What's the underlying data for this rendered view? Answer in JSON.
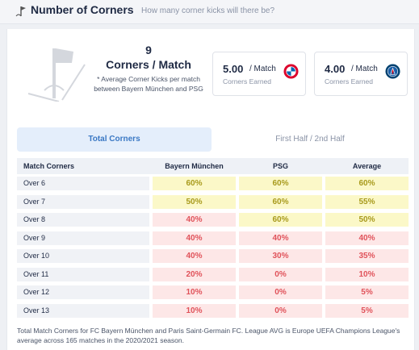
{
  "header": {
    "title": "Number of Corners",
    "subtitle": "How many corner kicks will there be?"
  },
  "summary": {
    "corners_value": "9",
    "corners_label": "Corners / Match",
    "note": "* Average Corner Kicks per match between Bayern München and PSG"
  },
  "teams": [
    {
      "value": "5.00",
      "per": "/ Match",
      "sub": "Corners Earned",
      "logo": "bayern-logo-icon",
      "color": "#dc052d"
    },
    {
      "value": "4.00",
      "per": "/ Match",
      "sub": "Corners Earned",
      "logo": "psg-logo-icon",
      "color": "#004170"
    }
  ],
  "tabs": [
    {
      "label": "Total Corners",
      "active": true
    },
    {
      "label": "First Half / 2nd Half",
      "active": false
    }
  ],
  "table": {
    "headers": [
      "Match Corners",
      "Bayern München",
      "PSG",
      "Average"
    ],
    "rows": [
      {
        "label": "Over 6",
        "values": [
          "60%",
          "60%",
          "60%"
        ]
      },
      {
        "label": "Over 7",
        "values": [
          "50%",
          "60%",
          "55%"
        ]
      },
      {
        "label": "Over 8",
        "values": [
          "40%",
          "60%",
          "50%"
        ]
      },
      {
        "label": "Over 9",
        "values": [
          "40%",
          "40%",
          "40%"
        ]
      },
      {
        "label": "Over 10",
        "values": [
          "40%",
          "30%",
          "35%"
        ]
      },
      {
        "label": "Over 11",
        "values": [
          "20%",
          "0%",
          "10%"
        ]
      },
      {
        "label": "Over 12",
        "values": [
          "10%",
          "0%",
          "5%"
        ]
      },
      {
        "label": "Over 13",
        "values": [
          "10%",
          "0%",
          "5%"
        ]
      }
    ]
  },
  "colors": {
    "high_bg": "#fbf8c8",
    "high_text": "#a89a1c",
    "low_bg": "#fde7e7",
    "low_text": "#e0525a",
    "accent": "#3a78c4"
  },
  "footer": {
    "note": "Total Match Corners for FC Bayern München and Paris Saint-Germain FC. League AVG is Europe UEFA Champions League's average across 165 matches in the 2020/2021 season."
  }
}
